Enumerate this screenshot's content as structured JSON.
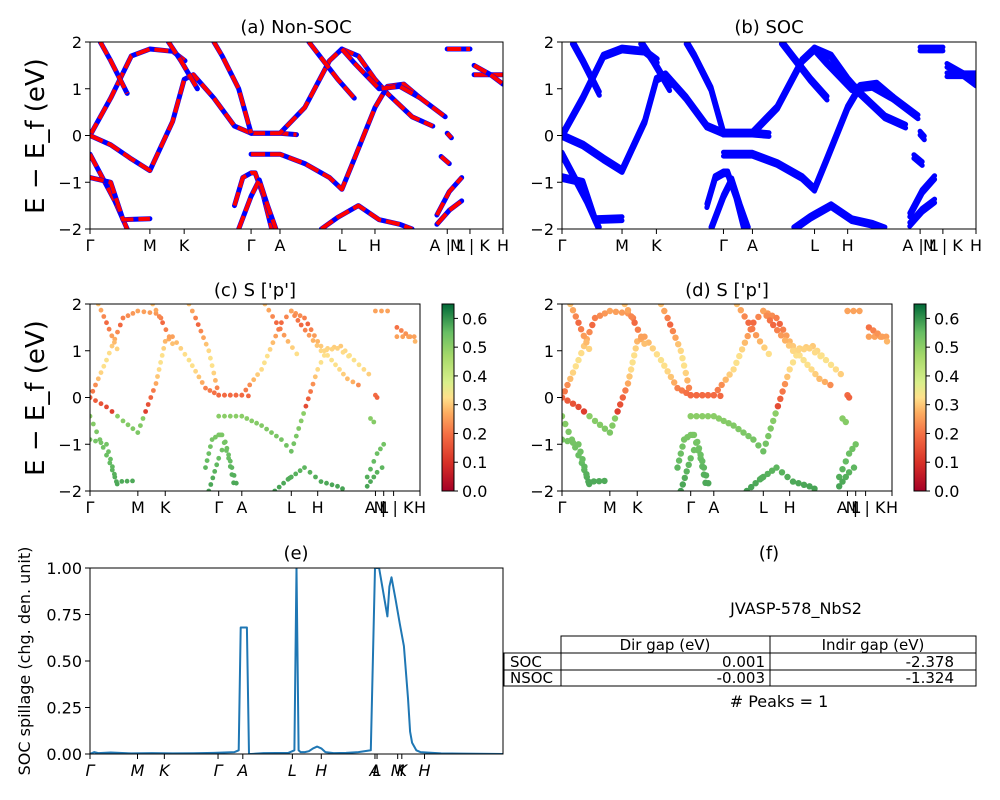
{
  "figure": {
    "ylabel_band": "E − E_f (eV)",
    "ylabel_spillage": "SOC spillage (chg. den. unit)",
    "panel_titles": {
      "a": "(a) Non-SOC",
      "b": "(b) SOC",
      "c": "(c)  S ['p']",
      "d": "(d) S ['p']",
      "e": "(e)",
      "f": "(f)"
    }
  },
  "colors": {
    "red": "#ff0000",
    "blue": "#0000ff",
    "line": "#1f77b4"
  },
  "chart_data": [
    {
      "id": "a",
      "type": "line",
      "title": "(a) Non-SOC",
      "ylabel": "E − E_f (eV)",
      "ylim": [
        -2,
        2
      ],
      "yticks": [
        "2",
        "1",
        "0",
        "−1",
        "−2"
      ],
      "kticks": [
        {
          "label": "Γ",
          "x": 0.0
        },
        {
          "label": "M",
          "x": 0.145
        },
        {
          "label": "K",
          "x": 0.228
        },
        {
          "label": "Γ",
          "x": 0.39
        },
        {
          "label": "A",
          "x": 0.46
        },
        {
          "label": "L",
          "x": 0.61
        },
        {
          "label": "H",
          "x": 0.69
        },
        {
          "label": "A | L",
          "x": 0.865
        },
        {
          "label": "M | K",
          "x": 0.92
        },
        {
          "label": "H",
          "x": 1.0
        }
      ],
      "series_note": "Blue SOC-free bands drawn with red dashed overlay",
      "bands": [
        [
          [
            0,
            0
          ],
          [
            0.05,
            0.8
          ],
          [
            0.1,
            1.7
          ],
          [
            0.145,
            1.85
          ],
          [
            0.2,
            1.8
          ],
          [
            0.23,
            1.6
          ]
        ],
        [
          [
            0,
            0
          ],
          [
            0.05,
            -0.2
          ],
          [
            0.1,
            -0.5
          ],
          [
            0.145,
            -0.75
          ],
          [
            0.2,
            0.3
          ],
          [
            0.228,
            1.2
          ],
          [
            0.25,
            1.3
          ],
          [
            0.3,
            0.8
          ],
          [
            0.35,
            0.2
          ],
          [
            0.39,
            0.05
          ],
          [
            0.46,
            0.05
          ],
          [
            0.5,
            0.02
          ]
        ],
        [
          [
            0.39,
            0.05
          ],
          [
            0.46,
            0.05
          ],
          [
            0.52,
            0.6
          ],
          [
            0.58,
            1.6
          ],
          [
            0.61,
            1.85
          ],
          [
            0.65,
            1.7
          ],
          [
            0.69,
            1.2
          ],
          [
            0.72,
            0.9
          ],
          [
            0.78,
            0.4
          ],
          [
            0.83,
            0.2
          ]
        ],
        [
          [
            0.39,
            -0.4
          ],
          [
            0.46,
            -0.4
          ],
          [
            0.52,
            -0.6
          ],
          [
            0.58,
            -0.9
          ],
          [
            0.61,
            -1.15
          ],
          [
            0.64,
            -0.5
          ],
          [
            0.69,
            0.6
          ],
          [
            0.72,
            1.05
          ],
          [
            0.76,
            1.1
          ],
          [
            0.8,
            0.8
          ]
        ],
        [
          [
            0,
            -0.4
          ],
          [
            0.03,
            -0.9
          ],
          [
            0.06,
            -1.4
          ],
          [
            0.09,
            -2.0
          ]
        ],
        [
          [
            0,
            -0.9
          ],
          [
            0.05,
            -1.0
          ],
          [
            0.08,
            -1.8
          ],
          [
            0.145,
            -1.78
          ]
        ],
        [
          [
            0.35,
            -1.5
          ],
          [
            0.37,
            -0.9
          ],
          [
            0.39,
            -0.8
          ],
          [
            0.4,
            -0.8
          ],
          [
            0.42,
            -1.3
          ],
          [
            0.44,
            -2.0
          ]
        ],
        [
          [
            0.36,
            -2.0
          ],
          [
            0.39,
            -1.3
          ],
          [
            0.41,
            -0.95
          ],
          [
            0.43,
            -1.5
          ],
          [
            0.45,
            -2.0
          ]
        ],
        [
          [
            0.56,
            -2.0
          ],
          [
            0.6,
            -1.75
          ],
          [
            0.61,
            -1.7
          ],
          [
            0.65,
            -1.5
          ],
          [
            0.7,
            -1.8
          ],
          [
            0.75,
            -1.9
          ],
          [
            0.78,
            -2.0
          ]
        ],
        [
          [
            0.3,
            2.0
          ],
          [
            0.32,
            1.7
          ],
          [
            0.36,
            1.0
          ],
          [
            0.39,
            0.05
          ]
        ],
        [
          [
            0.19,
            2.0
          ],
          [
            0.22,
            1.6
          ],
          [
            0.26,
            1.0
          ]
        ],
        [
          [
            0.025,
            2.0
          ],
          [
            0.05,
            1.6
          ],
          [
            0.09,
            0.9
          ]
        ],
        [
          [
            0.61,
            1.85
          ],
          [
            0.64,
            1.55
          ],
          [
            0.7,
            1.0
          ],
          [
            0.75,
            1.05
          ],
          [
            0.8,
            0.8
          ],
          [
            0.86,
            0.4
          ]
        ],
        [
          [
            0.53,
            2.0
          ],
          [
            0.6,
            1.2
          ],
          [
            0.64,
            0.8
          ]
        ],
        [
          [
            0.84,
            -1.7
          ],
          [
            0.87,
            -1.2
          ],
          [
            0.9,
            -0.9
          ]
        ],
        [
          [
            0.84,
            -1.9
          ],
          [
            0.87,
            -1.6
          ],
          [
            0.9,
            -1.4
          ]
        ],
        [
          [
            0.85,
            -0.45
          ],
          [
            0.87,
            -0.6
          ]
        ],
        [
          [
            0.865,
            0.05
          ],
          [
            0.875,
            -0.05
          ]
        ],
        [
          [
            0.865,
            1.85
          ],
          [
            0.92,
            1.85
          ]
        ],
        [
          [
            0.93,
            1.3
          ],
          [
            1.0,
            1.3
          ]
        ],
        [
          [
            0.93,
            1.5
          ],
          [
            0.97,
            1.3
          ],
          [
            1.0,
            1.1
          ]
        ]
      ]
    },
    {
      "id": "b",
      "type": "line",
      "title": "(b) SOC",
      "ylabel": "",
      "ylim": [
        -2,
        2
      ],
      "yticks": [
        "2",
        "1",
        "0",
        "−1",
        "−2"
      ],
      "kticks": [
        {
          "label": "Γ",
          "x": 0.0
        },
        {
          "label": "M",
          "x": 0.145
        },
        {
          "label": "K",
          "x": 0.228
        },
        {
          "label": "Γ",
          "x": 0.39
        },
        {
          "label": "A",
          "x": 0.46
        },
        {
          "label": "L",
          "x": 0.61
        },
        {
          "label": "H",
          "x": 0.69
        },
        {
          "label": "A | L",
          "x": 0.865
        },
        {
          "label": "M | K",
          "x": 0.92
        },
        {
          "label": "H",
          "x": 1.0
        }
      ]
    },
    {
      "id": "c",
      "type": "scatter",
      "title": "(c)  S ['p']",
      "ylabel": "E − E_f (eV)",
      "ylim": [
        -2,
        2
      ],
      "yticks": [
        "2",
        "1",
        "0",
        "−1",
        "−2"
      ],
      "colorbar": {
        "range": [
          0.0,
          0.65
        ],
        "ticks": [
          "0.0",
          "0.1",
          "0.2",
          "0.3",
          "0.4",
          "0.5",
          "0.6"
        ],
        "cmap": "RdYlGn"
      },
      "kticks": [
        {
          "label": "Γ",
          "x": 0.0
        },
        {
          "label": "M",
          "x": 0.145
        },
        {
          "label": "K",
          "x": 0.228
        },
        {
          "label": "Γ",
          "x": 0.39
        },
        {
          "label": "A",
          "x": 0.46
        },
        {
          "label": "L",
          "x": 0.61
        },
        {
          "label": "H",
          "x": 0.69
        },
        {
          "label": "A |",
          "x": 0.865
        },
        {
          "label": "L",
          "x": 0.89
        },
        {
          "label": "M | K",
          "x": 0.92
        },
        {
          "label": "H",
          "x": 1.0
        }
      ]
    },
    {
      "id": "d",
      "type": "scatter",
      "title": "(d) S ['p']",
      "ylabel": "",
      "ylim": [
        -2,
        2
      ],
      "yticks": [
        "2",
        "1",
        "0",
        "−1",
        "−2"
      ],
      "colorbar": {
        "range": [
          0.0,
          0.65
        ],
        "ticks": [
          "0.0",
          "0.1",
          "0.2",
          "0.3",
          "0.4",
          "0.5",
          "0.6"
        ],
        "cmap": "RdYlGn"
      },
      "kticks": [
        {
          "label": "Γ",
          "x": 0.0
        },
        {
          "label": "M",
          "x": 0.145
        },
        {
          "label": "K",
          "x": 0.228
        },
        {
          "label": "Γ",
          "x": 0.39
        },
        {
          "label": "A",
          "x": 0.46
        },
        {
          "label": "L",
          "x": 0.61
        },
        {
          "label": "H",
          "x": 0.69
        },
        {
          "label": "A |",
          "x": 0.865
        },
        {
          "label": "L",
          "x": 0.89
        },
        {
          "label": "M | K",
          "x": 0.92
        },
        {
          "label": "H",
          "x": 1.0
        }
      ]
    },
    {
      "id": "e",
      "type": "line",
      "title": "(e)",
      "ylabel": "SOC spillage (chg. den. unit)",
      "ylim": [
        0,
        1.0
      ],
      "yticks": [
        "1.00",
        "0.75",
        "0.50",
        "0.25",
        "0.00"
      ],
      "kticks": [
        {
          "label": "Γ",
          "x": 0.0
        },
        {
          "label": "M",
          "x": 0.115
        },
        {
          "label": "K",
          "x": 0.18
        },
        {
          "label": "Γ",
          "x": 0.31
        },
        {
          "label": "A",
          "x": 0.37
        },
        {
          "label": "L",
          "x": 0.49
        },
        {
          "label": "H",
          "x": 0.56
        },
        {
          "label": "A",
          "x": 0.69
        },
        {
          "label": "L",
          "x": 0.695
        },
        {
          "label": "M",
          "x": 0.745
        },
        {
          "label": "K",
          "x": 0.755
        },
        {
          "label": "H",
          "x": 0.81
        }
      ],
      "x": [
        0,
        0.01,
        0.02,
        0.05,
        0.1,
        0.15,
        0.2,
        0.25,
        0.3,
        0.35,
        0.36,
        0.365,
        0.37,
        0.38,
        0.385,
        0.39,
        0.42,
        0.48,
        0.495,
        0.5,
        0.505,
        0.51,
        0.52,
        0.53,
        0.54,
        0.55,
        0.56,
        0.57,
        0.59,
        0.62,
        0.65,
        0.68,
        0.69,
        0.7,
        0.72,
        0.725,
        0.73,
        0.74,
        0.75,
        0.76,
        0.77,
        0.775,
        0.78,
        0.79,
        0.8,
        0.85,
        0.9,
        1.0
      ],
      "y": [
        0.0,
        0.01,
        0.005,
        0.008,
        0.003,
        0.005,
        0.003,
        0.004,
        0.006,
        0.01,
        0.02,
        0.68,
        0.68,
        0.68,
        0.0,
        0.0,
        0.005,
        0.006,
        0.02,
        1.0,
        0.02,
        0.01,
        0.01,
        0.015,
        0.03,
        0.04,
        0.03,
        0.01,
        0.005,
        0.006,
        0.01,
        0.02,
        1.0,
        1.0,
        0.74,
        0.9,
        0.95,
        0.83,
        0.7,
        0.58,
        0.3,
        0.12,
        0.06,
        0.02,
        0.01,
        0.003,
        0.002,
        0.0
      ]
    },
    {
      "id": "f",
      "type": "table",
      "title": "(f)",
      "heading": "JVASP-578_NbS2",
      "columns": [
        "",
        "Dir gap (eV)",
        "Indir gap (eV)"
      ],
      "rows": [
        [
          "SOC",
          "0.001",
          "-2.378"
        ],
        [
          "NSOC",
          "-0.003",
          "-1.324"
        ]
      ],
      "footer": "# Peaks = 1"
    }
  ]
}
